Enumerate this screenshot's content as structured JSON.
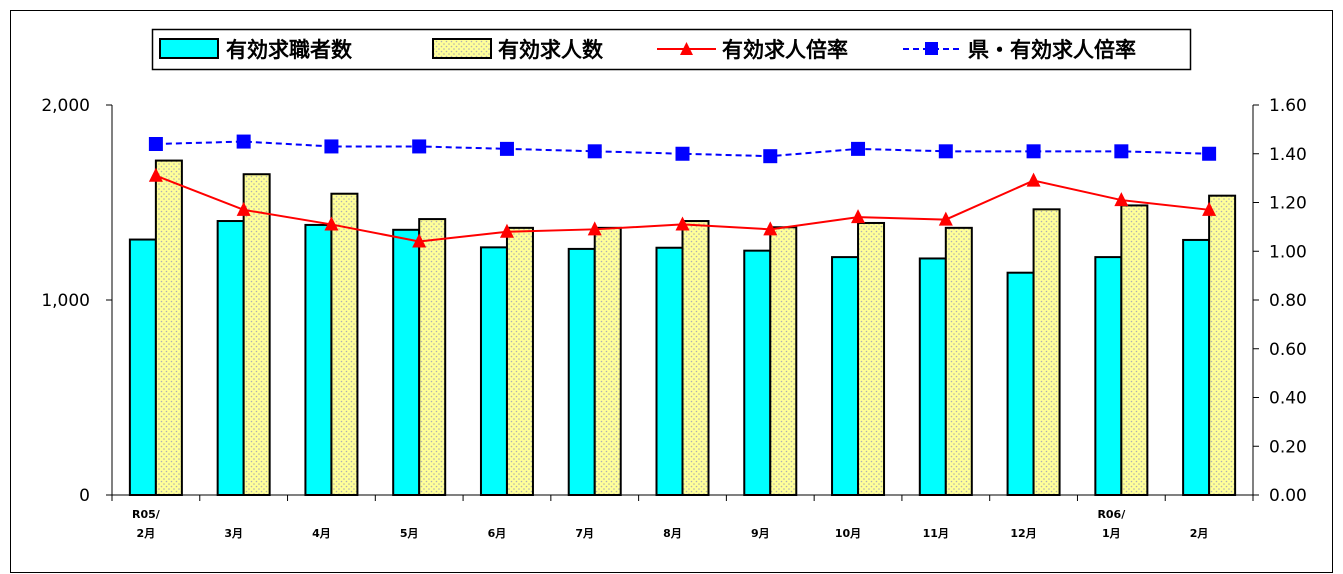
{
  "chart_data": {
    "type": "bar",
    "title": "",
    "categories": [
      [
        "R05/",
        "2月"
      ],
      [
        "3月"
      ],
      [
        "4月"
      ],
      [
        "5月"
      ],
      [
        "6月"
      ],
      [
        "7月"
      ],
      [
        "8月"
      ],
      [
        "9月"
      ],
      [
        "10月"
      ],
      [
        "11月"
      ],
      [
        "12月"
      ],
      [
        "R06/",
        "1月"
      ],
      [
        "2月"
      ]
    ],
    "series": [
      {
        "name": "有効求職者数",
        "kind": "bar",
        "axis": "left",
        "color": "#00ffff",
        "values": [
          1310,
          1405,
          1385,
          1360,
          1270,
          1262,
          1268,
          1253,
          1220,
          1213,
          1140,
          1220,
          1308
        ]
      },
      {
        "name": "有効求人数",
        "kind": "bar",
        "axis": "left",
        "color": "#ffff99",
        "pattern": "dotted",
        "values": [
          1715,
          1645,
          1545,
          1415,
          1370,
          1370,
          1405,
          1373,
          1395,
          1370,
          1465,
          1485,
          1535
        ]
      },
      {
        "name": "有効求人倍率",
        "kind": "line",
        "axis": "right",
        "color": "#ff0000",
        "marker": "triangle",
        "line_style": "solid",
        "values": [
          1.31,
          1.17,
          1.11,
          1.04,
          1.08,
          1.09,
          1.11,
          1.09,
          1.14,
          1.13,
          1.29,
          1.21,
          1.17
        ]
      },
      {
        "name": "県・有効求人倍率",
        "kind": "line",
        "axis": "right",
        "color": "#0000ff",
        "marker": "square",
        "line_style": "dashed",
        "values": [
          1.44,
          1.45,
          1.43,
          1.43,
          1.42,
          1.41,
          1.4,
          1.39,
          1.42,
          1.41,
          1.41,
          1.41,
          1.4
        ]
      }
    ],
    "y_left": {
      "range": [
        0,
        2000
      ],
      "ticks": [
        0,
        1000,
        2000
      ],
      "tick_labels": [
        "0",
        "1,000",
        "2,000"
      ]
    },
    "y_right": {
      "range": [
        0,
        1.6
      ],
      "ticks": [
        0,
        0.2,
        0.4,
        0.6,
        0.8,
        1.0,
        1.2,
        1.4,
        1.6
      ],
      "tick_labels": [
        "0.00",
        "0.20",
        "0.40",
        "0.60",
        "0.80",
        "1.00",
        "1.20",
        "1.40",
        "1.60"
      ]
    },
    "grid": false,
    "legend": {
      "position": "top",
      "entries": [
        "有効求職者数",
        "有効求人数",
        "有効求人倍率",
        "県・有効求人倍率"
      ]
    }
  }
}
